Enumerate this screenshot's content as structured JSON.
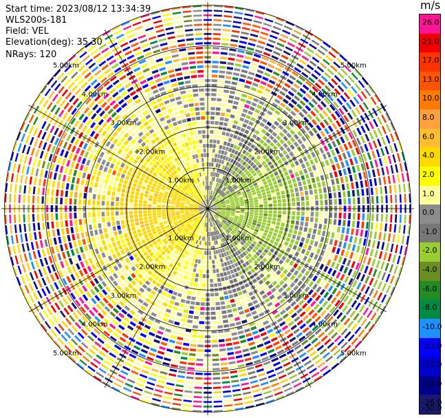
{
  "header": {
    "start_time": "Start time: 2023/08/12 13:34:39",
    "instrument": "WLS200s-181",
    "field": "Field: VEL",
    "elevation": "Elevation(deg): 35.30",
    "nrays": "NRays: 120"
  },
  "colorbar": {
    "unit": "m/s",
    "ticks": [
      "26.0",
      "21.0",
      "17.0",
      "13.0",
      "10.0",
      "8.0",
      "6.0",
      "4.0",
      "2.0",
      "1.0",
      "0.0",
      "-1.0",
      "-2.0",
      "-4.0",
      "-6.0",
      "-8.0",
      "-10.0",
      "-13.0",
      "-17.0",
      "-21.0",
      "-26.0",
      "-30.0"
    ],
    "colors": [
      "#ff1493",
      "#ee0000",
      "#ff3300",
      "#ff5500",
      "#ff7b00",
      "#ffa040",
      "#ffbe30",
      "#ffd800",
      "#ffff00",
      "#ffff99",
      "#8c8c8c",
      "#777777",
      "#9acd32",
      "#6b8e23",
      "#228b22",
      "#008b45",
      "#1e90ff",
      "#0000ff",
      "#0000cd",
      "#00008b",
      "#191970"
    ]
  },
  "chart_data": {
    "type": "ppi",
    "field": "VEL",
    "units": "m/s",
    "elevation_deg": 35.3,
    "n_rays": 120,
    "range_labels": [
      "1.00km",
      "2.00km",
      "3.00km",
      "4.00km",
      "5.00km"
    ],
    "range_rings_km": [
      1,
      2,
      3,
      4,
      5
    ],
    "max_range_km": 5.0,
    "spokes_deg": [
      0,
      30,
      60,
      90,
      120,
      150,
      180,
      210,
      240,
      270,
      300,
      330
    ],
    "velocity_pattern": {
      "inner_west_half": "positive 1 to 6 m/s (yellow)",
      "inner_east_half": "negative -1 to -6 m/s (green)",
      "mid_ring": "mixed near-zero (gray) with yellow/green",
      "outer_ring": "noisy, full scale -30 to 26 m/s"
    }
  }
}
